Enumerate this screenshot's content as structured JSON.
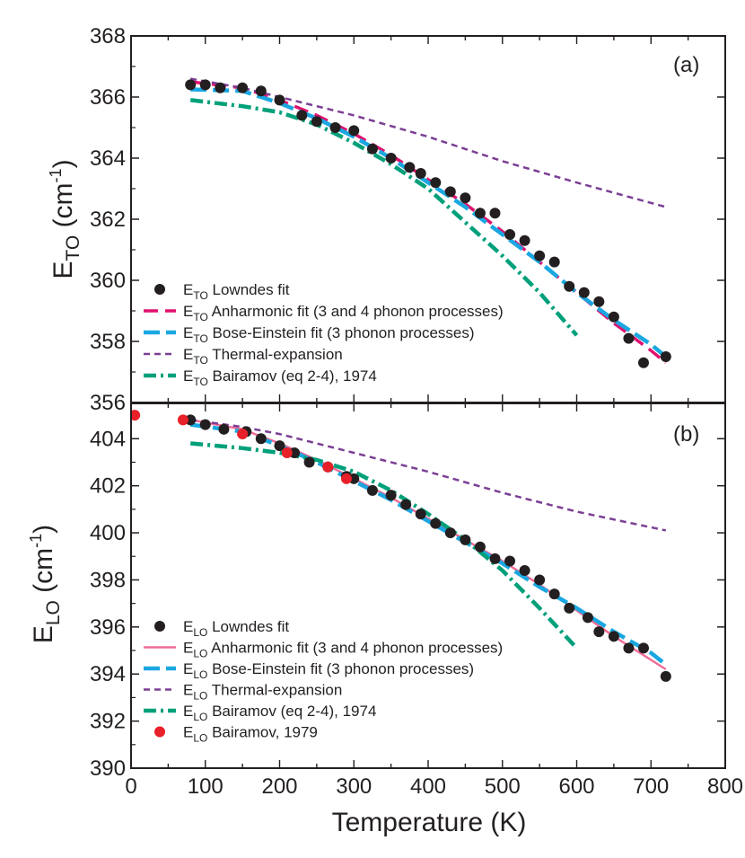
{
  "chart_data": [
    {
      "type": "line",
      "panel_label": "(a)",
      "ylabel": "E",
      "ylabel_sub": "TO",
      "ylabel_unit": " (cm",
      "ylabel_sup": "-1",
      "ylabel_close": ")",
      "ylim": [
        356,
        368
      ],
      "yticks": [
        "356",
        "358",
        "360",
        "362",
        "364",
        "366",
        "368"
      ],
      "xlim": [
        0,
        800
      ],
      "show_xticklabels": false,
      "series": [
        {
          "key": "lowndes",
          "kind": "scatter",
          "color": "#231f20",
          "label_main": "E",
          "label_sub": "TO",
          "label_rest": " Lowndes fit",
          "x": [
            80,
            100,
            120,
            150,
            175,
            200,
            230,
            250,
            275,
            300,
            325,
            350,
            375,
            390,
            410,
            430,
            450,
            470,
            490,
            510,
            530,
            550,
            570,
            590,
            610,
            630,
            650,
            670,
            690,
            720
          ],
          "y": [
            366.4,
            366.4,
            366.3,
            366.3,
            366.2,
            365.9,
            365.4,
            365.2,
            365.0,
            364.9,
            364.3,
            364.0,
            363.7,
            363.5,
            363.2,
            362.9,
            362.7,
            362.2,
            362.2,
            361.5,
            361.3,
            360.8,
            360.6,
            359.8,
            359.6,
            359.3,
            358.8,
            358.1,
            357.3,
            357.5
          ]
        },
        {
          "key": "anharmonic",
          "kind": "line",
          "color": "#e0116f",
          "dash": "16,8",
          "width": 3.5,
          "label_main": "E",
          "label_sub": "TO",
          "label_rest": " Anharmonic fit (3 and 4 phonon processes)",
          "x": [
            80,
            150,
            200,
            250,
            300,
            350,
            400,
            450,
            500,
            550,
            600,
            650,
            700,
            720
          ],
          "y": [
            366.5,
            366.3,
            365.9,
            365.4,
            364.8,
            364.1,
            363.3,
            362.5,
            361.6,
            360.6,
            359.6,
            358.6,
            357.7,
            357.3
          ]
        },
        {
          "key": "bose",
          "kind": "line",
          "color": "#1aa7e1",
          "dash": "18,7",
          "width": 4.5,
          "label_main": "E",
          "label_sub": "TO",
          "label_rest": " Bose-Einstein fit (3 phonon processes)",
          "x": [
            80,
            150,
            200,
            250,
            300,
            350,
            400,
            450,
            500,
            550,
            600,
            650,
            700,
            720
          ],
          "y": [
            366.25,
            366.2,
            365.8,
            365.3,
            364.7,
            364.0,
            363.2,
            362.4,
            361.5,
            360.6,
            359.6,
            358.7,
            357.9,
            357.5
          ]
        },
        {
          "key": "thermal",
          "kind": "line",
          "color": "#7b3f94",
          "dash": "7,5",
          "width": 2.5,
          "label_main": "E",
          "label_sub": "TO",
          "label_rest": " Thermal-expansion",
          "x": [
            80,
            150,
            200,
            300,
            400,
            500,
            600,
            720
          ],
          "y": [
            366.6,
            366.3,
            366.0,
            365.4,
            364.7,
            363.9,
            363.2,
            362.4
          ]
        },
        {
          "key": "bairamov_eq",
          "kind": "line",
          "color": "#00a07a",
          "dash": "14,5,3,5",
          "width": 4.5,
          "label_main": "E",
          "label_sub": "TO",
          "label_rest": " Bairamov (eq 2-4), 1974",
          "x": [
            80,
            150,
            200,
            250,
            300,
            350,
            400,
            450,
            500,
            550,
            600
          ],
          "y": [
            365.9,
            365.7,
            365.5,
            365.1,
            364.5,
            363.8,
            363.0,
            361.9,
            360.8,
            359.6,
            358.2
          ]
        }
      ]
    },
    {
      "type": "line",
      "panel_label": "(b)",
      "ylabel": "E",
      "ylabel_sub": "LO",
      "ylabel_unit": " (cm",
      "ylabel_sup": "-1",
      "ylabel_close": ")",
      "ylim": [
        390,
        405.5
      ],
      "yticks": [
        "390",
        "392",
        "394",
        "396",
        "398",
        "400",
        "402",
        "404"
      ],
      "xlim": [
        0,
        800
      ],
      "xticks": [
        "0",
        "100",
        "200",
        "300",
        "400",
        "500",
        "600",
        "700",
        "800"
      ],
      "xlabel": "Temperature (K)",
      "show_xticklabels": true,
      "series": [
        {
          "key": "lowndes",
          "kind": "scatter",
          "color": "#231f20",
          "label_main": "E",
          "label_sub": "LO",
          "label_rest": " Lowndes fit",
          "x": [
            80,
            100,
            125,
            155,
            175,
            200,
            220,
            240,
            265,
            290,
            300,
            325,
            350,
            370,
            390,
            410,
            430,
            450,
            470,
            490,
            510,
            530,
            550,
            570,
            590,
            615,
            630,
            650,
            670,
            690,
            720
          ],
          "y": [
            404.8,
            404.6,
            404.4,
            404.3,
            404.0,
            403.7,
            403.4,
            403.0,
            402.8,
            402.4,
            402.3,
            401.8,
            401.6,
            401.2,
            400.8,
            400.4,
            400.0,
            399.7,
            399.4,
            398.9,
            398.8,
            398.4,
            398.0,
            397.4,
            396.8,
            396.4,
            395.8,
            395.6,
            395.1,
            395.1,
            393.9
          ]
        },
        {
          "key": "anharmonic",
          "kind": "line",
          "color": "#ef6d95",
          "dash": "",
          "width": 2.5,
          "label_main": "E",
          "label_sub": "LO",
          "label_rest": " Anharmonic fit (3 and 4 phonon processes)",
          "x": [
            80,
            150,
            200,
            250,
            300,
            350,
            400,
            450,
            500,
            550,
            600,
            650,
            700,
            720
          ],
          "y": [
            404.8,
            404.4,
            403.8,
            403.1,
            402.3,
            401.5,
            400.6,
            399.7,
            398.8,
            397.8,
            396.7,
            395.6,
            394.6,
            394.2
          ]
        },
        {
          "key": "bose",
          "kind": "line",
          "color": "#1aa7e1",
          "dash": "18,7",
          "width": 4.5,
          "label_main": "E",
          "label_sub": "LO",
          "label_rest": " Bose-Einstein fit (3 phonon processes)",
          "x": [
            80,
            150,
            200,
            250,
            300,
            350,
            400,
            450,
            500,
            550,
            600,
            650,
            700,
            720
          ],
          "y": [
            404.6,
            404.3,
            403.7,
            403.0,
            402.2,
            401.4,
            400.5,
            399.6,
            398.7,
            397.7,
            396.8,
            395.8,
            394.9,
            394.4
          ]
        },
        {
          "key": "thermal",
          "kind": "line",
          "color": "#7b3f94",
          "dash": "7,5",
          "width": 2.5,
          "label_main": "E",
          "label_sub": "LO",
          "label_rest": " Thermal-expansion",
          "x": [
            80,
            150,
            200,
            300,
            400,
            500,
            600,
            720
          ],
          "y": [
            404.8,
            404.5,
            404.2,
            403.4,
            402.6,
            401.7,
            400.9,
            400.1
          ]
        },
        {
          "key": "bairamov_eq",
          "kind": "line",
          "color": "#00a07a",
          "dash": "14,5,3,5",
          "width": 4.5,
          "label_main": "E",
          "label_sub": "LO",
          "label_rest": " Bairamov (eq 2-4), 1974",
          "x": [
            80,
            150,
            200,
            250,
            300,
            350,
            400,
            450,
            500,
            550,
            600
          ],
          "y": [
            403.8,
            403.6,
            403.4,
            403.1,
            402.6,
            401.8,
            400.8,
            399.7,
            398.4,
            396.8,
            395.1
          ]
        },
        {
          "key": "bairamov79",
          "kind": "scatter",
          "color": "#e8202a",
          "label_main": "E",
          "label_sub": "LO",
          "label_rest": " Bairamov, 1979",
          "x": [
            5,
            70,
            150,
            210,
            265,
            290
          ],
          "y": [
            405.0,
            404.8,
            404.2,
            403.4,
            402.8,
            402.3
          ]
        }
      ]
    }
  ]
}
